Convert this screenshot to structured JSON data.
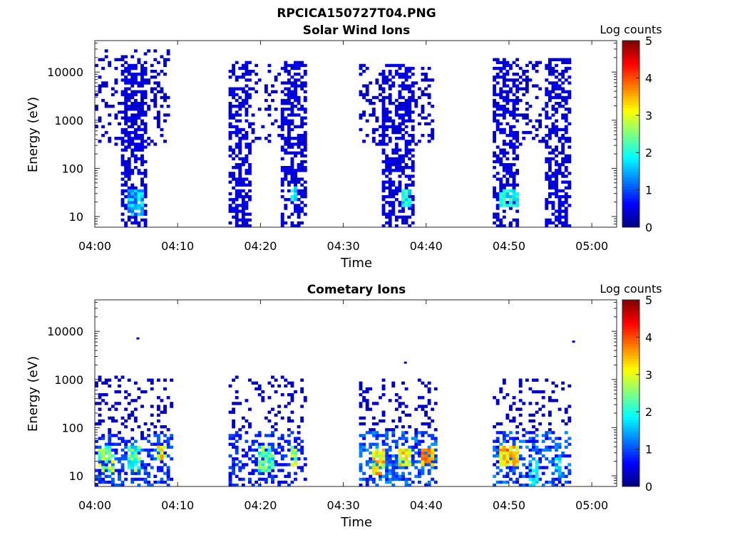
{
  "figure": {
    "title": "RPCICA150727T04.PNG"
  },
  "chart_data": [
    {
      "type": "heatmap",
      "title": "Solar Wind Ions",
      "xlabel": "Time",
      "ylabel": "Energy (eV)",
      "x_ticks": [
        "04:00",
        "04:10",
        "04:20",
        "04:30",
        "04:40",
        "04:50",
        "05:00"
      ],
      "x_tick_minutes": [
        0,
        10,
        20,
        30,
        40,
        50,
        60
      ],
      "xlim_minutes": [
        0,
        63
      ],
      "y_scale": "log",
      "y_ticks": [
        "10",
        "100",
        "1000",
        "10000"
      ],
      "y_tick_values": [
        10,
        100,
        1000,
        10000
      ],
      "ylim": [
        6,
        45000
      ],
      "colorbar": {
        "label": "Log counts",
        "ticks": [
          "0",
          "1",
          "2",
          "3",
          "4",
          "5"
        ],
        "range": [
          0,
          5
        ],
        "colormap": "jet"
      },
      "regions": [
        {
          "t": [
            0,
            9
          ],
          "e": [
            300,
            30000
          ],
          "density": 0.25,
          "c": [
            0.3,
            0.4
          ]
        },
        {
          "t": [
            3.2,
            6.3
          ],
          "e": [
            6,
            15000
          ],
          "density": 0.55,
          "c": [
            0.3,
            0.6
          ]
        },
        {
          "t": [
            4,
            6
          ],
          "e": [
            10,
            35
          ],
          "density": 0.9,
          "c": [
            1.0,
            2.0
          ]
        },
        {
          "t": [
            16,
            19
          ],
          "e": [
            6,
            18000
          ],
          "density": 0.55,
          "c": [
            0.3,
            0.6
          ]
        },
        {
          "t": [
            19,
            22.5
          ],
          "e": [
            300,
            15000
          ],
          "density": 0.2,
          "c": [
            0.3,
            0.4
          ]
        },
        {
          "t": [
            22.3,
            25.7
          ],
          "e": [
            6,
            18000
          ],
          "density": 0.55,
          "c": [
            0.3,
            0.6
          ]
        },
        {
          "t": [
            23.5,
            24.5
          ],
          "e": [
            20,
            40
          ],
          "density": 0.8,
          "c": [
            1.5,
            2.2
          ]
        },
        {
          "t": [
            32,
            35
          ],
          "e": [
            300,
            15000
          ],
          "density": 0.25,
          "c": [
            0.3,
            0.4
          ]
        },
        {
          "t": [
            34.5,
            38.5
          ],
          "e": [
            6,
            15000
          ],
          "density": 0.55,
          "c": [
            0.3,
            0.6
          ]
        },
        {
          "t": [
            38.5,
            41
          ],
          "e": [
            300,
            12000
          ],
          "density": 0.3,
          "c": [
            0.3,
            0.4
          ]
        },
        {
          "t": [
            37,
            38
          ],
          "e": [
            15,
            35
          ],
          "density": 0.85,
          "c": [
            1.5,
            2.3
          ]
        },
        {
          "t": [
            48,
            51
          ],
          "e": [
            6,
            20000
          ],
          "density": 0.55,
          "c": [
            0.3,
            0.6
          ]
        },
        {
          "t": [
            51,
            54.5
          ],
          "e": [
            300,
            18000
          ],
          "density": 0.25,
          "c": [
            0.3,
            0.4
          ]
        },
        {
          "t": [
            54.5,
            57.5
          ],
          "e": [
            6,
            20000
          ],
          "density": 0.55,
          "c": [
            0.3,
            0.6
          ]
        },
        {
          "t": [
            49,
            51
          ],
          "e": [
            15,
            35
          ],
          "density": 0.9,
          "c": [
            1.5,
            2.5
          ]
        }
      ]
    },
    {
      "type": "heatmap",
      "title": "Cometary Ions",
      "xlabel": "Time",
      "ylabel": "Energy (eV)",
      "x_ticks": [
        "04:00",
        "04:10",
        "04:20",
        "04:30",
        "04:40",
        "04:50",
        "05:00"
      ],
      "x_tick_minutes": [
        0,
        10,
        20,
        30,
        40,
        50,
        60
      ],
      "xlim_minutes": [
        0,
        63
      ],
      "y_scale": "log",
      "y_ticks": [
        "10",
        "100",
        "1000",
        "10000"
      ],
      "y_tick_values": [
        10,
        100,
        1000,
        10000
      ],
      "ylim": [
        6,
        45000
      ],
      "colorbar": {
        "label": "Log counts",
        "ticks": [
          "0",
          "1",
          "2",
          "3",
          "4",
          "5"
        ],
        "range": [
          0,
          5
        ],
        "colormap": "jet"
      },
      "regions": [
        {
          "t": [
            0,
            9.5
          ],
          "e": [
            70,
            1200
          ],
          "density": 0.2,
          "c": [
            0.3,
            0.4
          ]
        },
        {
          "t": [
            0,
            9.5
          ],
          "e": [
            6,
            70
          ],
          "density": 0.45,
          "c": [
            0.5,
            1.2
          ]
        },
        {
          "t": [
            0.5,
            2.5
          ],
          "e": [
            12,
            40
          ],
          "density": 0.75,
          "c": [
            1.8,
            3.2
          ]
        },
        {
          "t": [
            4,
            5.5
          ],
          "e": [
            12,
            40
          ],
          "density": 0.7,
          "c": [
            1.5,
            2.8
          ]
        },
        {
          "t": [
            7.5,
            8.8
          ],
          "e": [
            20,
            45
          ],
          "density": 0.8,
          "c": [
            2.5,
            3.8
          ]
        },
        {
          "t": [
            16,
            25.5
          ],
          "e": [
            80,
            1200
          ],
          "density": 0.18,
          "c": [
            0.3,
            0.4
          ]
        },
        {
          "t": [
            16,
            25.5
          ],
          "e": [
            6,
            80
          ],
          "density": 0.35,
          "c": [
            0.5,
            1.0
          ]
        },
        {
          "t": [
            19.5,
            21.5
          ],
          "e": [
            12,
            40
          ],
          "density": 0.75,
          "c": [
            1.5,
            2.8
          ]
        },
        {
          "t": [
            23.5,
            24.5
          ],
          "e": [
            15,
            40
          ],
          "density": 0.7,
          "c": [
            2.0,
            3.2
          ]
        },
        {
          "t": [
            32,
            41.5
          ],
          "e": [
            80,
            1000
          ],
          "density": 0.2,
          "c": [
            0.3,
            0.4
          ]
        },
        {
          "t": [
            32,
            41.5
          ],
          "e": [
            6,
            80
          ],
          "density": 0.45,
          "c": [
            0.6,
            1.4
          ]
        },
        {
          "t": [
            33.5,
            35
          ],
          "e": [
            10,
            35
          ],
          "density": 0.8,
          "c": [
            2.5,
            3.8
          ]
        },
        {
          "t": [
            36.8,
            38
          ],
          "e": [
            15,
            35
          ],
          "density": 0.8,
          "c": [
            2.5,
            3.6
          ]
        },
        {
          "t": [
            39.5,
            41
          ],
          "e": [
            15,
            35
          ],
          "density": 0.8,
          "c": [
            3.0,
            4.0
          ]
        },
        {
          "t": [
            48,
            57.5
          ],
          "e": [
            80,
            1000
          ],
          "density": 0.18,
          "c": [
            0.3,
            0.4
          ]
        },
        {
          "t": [
            48,
            57.5
          ],
          "e": [
            6,
            80
          ],
          "density": 0.4,
          "c": [
            0.5,
            1.4
          ]
        },
        {
          "t": [
            49,
            51
          ],
          "e": [
            15,
            40
          ],
          "density": 0.85,
          "c": [
            2.8,
            4.0
          ]
        },
        {
          "t": [
            52.5,
            53.5
          ],
          "e": [
            6,
            20
          ],
          "density": 0.6,
          "c": [
            1.5,
            2.0
          ]
        },
        {
          "t": [
            55.5,
            56.5
          ],
          "e": [
            10,
            25
          ],
          "density": 0.5,
          "c": [
            1.5,
            2.0
          ]
        }
      ],
      "points": [
        {
          "t": 5.2,
          "e": 7000,
          "c": 0.3
        },
        {
          "t": 37.5,
          "e": 2200,
          "c": 0.3
        },
        {
          "t": 57.8,
          "e": 6000,
          "c": 0.3
        }
      ]
    }
  ]
}
